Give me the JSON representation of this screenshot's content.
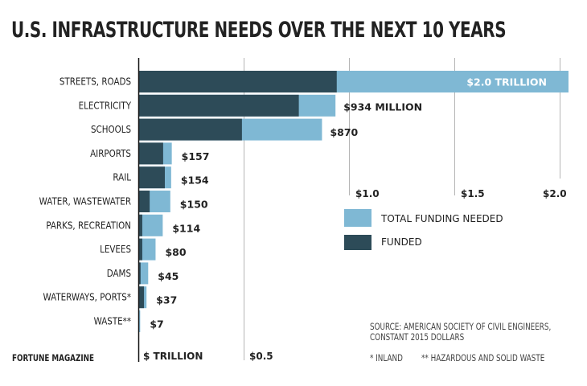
{
  "chart_data": {
    "type": "bar",
    "orientation": "horizontal",
    "stacked": "overlay",
    "title": "U.S. INFRASTRUCTURE NEEDS OVER THE NEXT 10 YEARS",
    "xlabel": "$ TRILLION",
    "xlim": [
      0,
      2.06
    ],
    "xticks": [
      0.5,
      1.0,
      1.5,
      2.0
    ],
    "xtick_labels": [
      "$0.5",
      "$1.0",
      "$1.5",
      "$2.0"
    ],
    "grid": true,
    "categories": [
      "STREETS, ROADS",
      "ELECTRICITY",
      "SCHOOLS",
      "AIRPORTS",
      "RAIL",
      "WATER, WASTEWATER",
      "PARKS, RECREATION",
      "LEVEES",
      "DAMS",
      "WATERWAYS, PORTS*",
      "WASTE**"
    ],
    "series": [
      {
        "name": "TOTAL FUNDING NEEDED",
        "color": "#7fb8d4",
        "values": [
          2.04,
          0.934,
          0.87,
          0.157,
          0.154,
          0.15,
          0.114,
          0.08,
          0.045,
          0.037,
          0.007
        ]
      },
      {
        "name": "FUNDED",
        "color": "#2d4b58",
        "values": [
          0.94,
          0.76,
          0.49,
          0.116,
          0.124,
          0.052,
          0.017,
          0.017,
          0.009,
          0.025,
          0.0
        ]
      }
    ],
    "data_labels": [
      "$2.0 TRILLION",
      "$934 MILLION",
      "$870",
      "$157",
      "$154",
      "$150",
      "$114",
      "$80",
      "$45",
      "$37",
      "$7"
    ],
    "legend_placement": "right-middle"
  },
  "source": "SOURCE: AMERICAN SOCIETY OF CIVIL ENGINEERS,",
  "source_line2": "CONSTANT 2015 DOLLARS",
  "footnote_1": "* INLAND",
  "footnote_2": "** HAZARDOUS AND SOLID WASTE",
  "brand": "FORTUNE MAGAZINE"
}
